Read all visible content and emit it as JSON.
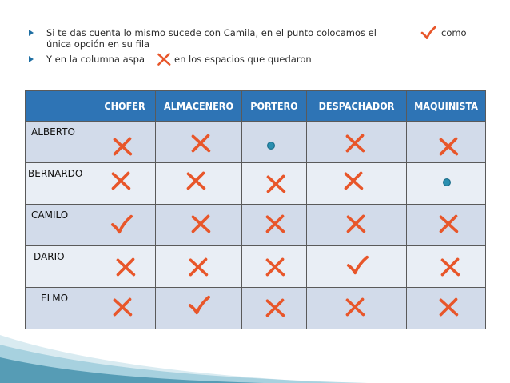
{
  "bullets": [
    {
      "line1": "Si te das cuenta lo mismo sucede con Camila, en el punto colocamos el",
      "suffix": "como",
      "line2": "única opción en su fila"
    },
    {
      "text_before": "Y en la columna aspa",
      "text_after": "en los espacios que quedaron"
    }
  ],
  "table": {
    "headers": [
      "",
      "CHOFER",
      "ALMACENERO",
      "PORTERO",
      "DESPACHADOR",
      "MAQUINISTA"
    ],
    "rows": [
      {
        "name": "ALBERTO",
        "marks": [
          "cross",
          "cross",
          "dot",
          "cross",
          "cross"
        ]
      },
      {
        "name": "BERNARDO",
        "marks": [
          "cross",
          "cross",
          "cross",
          "cross",
          "dot"
        ]
      },
      {
        "name": "CAMILO",
        "marks": [
          "check",
          "cross",
          "cross",
          "cross",
          "cross"
        ]
      },
      {
        "name": "DARIO",
        "marks": [
          "cross",
          "cross",
          "cross",
          "check",
          "cross"
        ]
      },
      {
        "name": "ELMO",
        "marks": [
          "cross",
          "check",
          "cross",
          "cross",
          "cross"
        ]
      }
    ]
  },
  "colors": {
    "header_bg": "#2e74b5",
    "row_odd": "#d2dbea",
    "row_even": "#e9eef5",
    "cross": "#e8562a",
    "check": "#e8562a",
    "dot": "#2a8fb0"
  },
  "icons": [
    "cross-icon",
    "check-icon",
    "dot-icon",
    "bullet-arrow-icon"
  ]
}
